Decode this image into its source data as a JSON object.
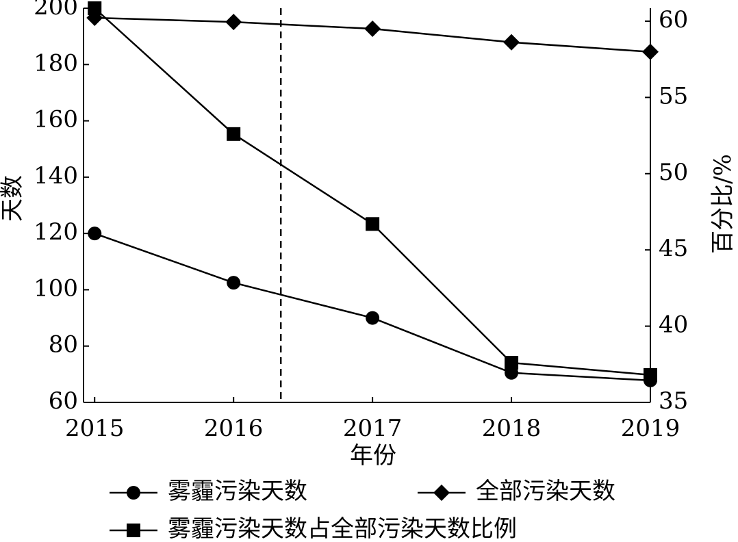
{
  "chart_data": {
    "type": "line",
    "x": [
      2015,
      2016,
      2017,
      2018,
      2019
    ],
    "xlim": [
      2014.92,
      2019
    ],
    "xticks": [
      2015,
      2016,
      2017,
      2018,
      2019
    ],
    "xlabel": "年份",
    "ylabel": "天数",
    "y2label": "百分比/%",
    "ylim": [
      60,
      200
    ],
    "yticks": [
      60,
      80,
      100,
      120,
      140,
      160,
      180,
      200
    ],
    "y2lim": [
      35,
      60.85
    ],
    "y2ticks": [
      35,
      40,
      45,
      50,
      55,
      60
    ],
    "reference_line_x": 2016.34,
    "series": [
      {
        "name": "雾霾污染天数",
        "color": "#000000",
        "marker": "circle",
        "values": [
          120,
          102.5,
          90,
          70.5,
          67.8
        ]
      },
      {
        "name": "全部污染天数",
        "color": "#000000",
        "marker": "diamond",
        "values": [
          196.6,
          195.1,
          192.7,
          187.9,
          184.5
        ]
      },
      {
        "name": "雾霾污染天数占全部污染天数比例",
        "color": "#000000",
        "marker": "square",
        "axis": "y2",
        "values": [
          60.85,
          52.6,
          46.7,
          37.6,
          36.8
        ]
      }
    ]
  }
}
